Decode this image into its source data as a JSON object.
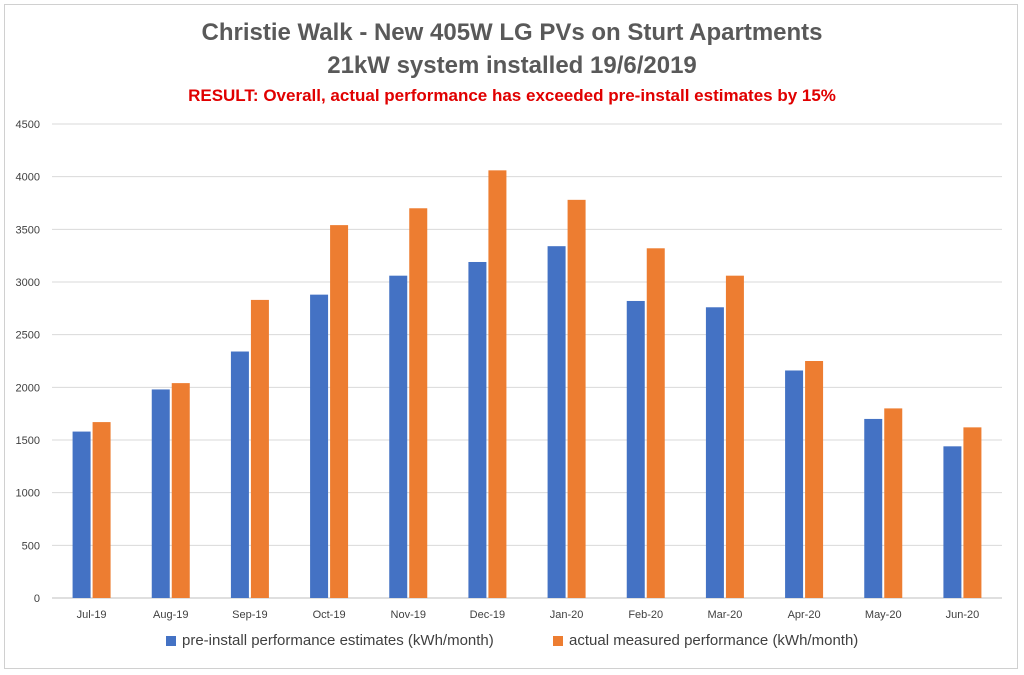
{
  "chart_data": {
    "type": "bar",
    "title": "Christie Walk - New 405W LG PVs on Sturt Apartments",
    "subtitle": "21kW system installed 19/6/2019",
    "annotation": "RESULT: Overall, actual performance has exceeded pre-install estimates by 15%",
    "categories": [
      "Jul-19",
      "Aug-19",
      "Sep-19",
      "Oct-19",
      "Nov-19",
      "Dec-19",
      "Jan-20",
      "Feb-20",
      "Mar-20",
      "Apr-20",
      "May-20",
      "Jun-20"
    ],
    "series": [
      {
        "name": "pre-install performance estimates (kWh/month)",
        "color": "#4472c4",
        "values": [
          1580,
          1980,
          2340,
          2880,
          3060,
          3190,
          3340,
          2820,
          2760,
          2160,
          1700,
          1440
        ]
      },
      {
        "name": "actual measured performance (kWh/month)",
        "color": "#ed7d31",
        "values": [
          1670,
          2040,
          2830,
          3540,
          3700,
          4060,
          3780,
          3320,
          3060,
          2250,
          1800,
          1620
        ]
      }
    ],
    "yticks": [
      0,
      500,
      1000,
      1500,
      2000,
      2500,
      3000,
      3500,
      4000,
      4500
    ],
    "ylim": [
      0,
      4500
    ],
    "xlabel": "",
    "ylabel": "",
    "grid": true,
    "legend": "bottom"
  }
}
